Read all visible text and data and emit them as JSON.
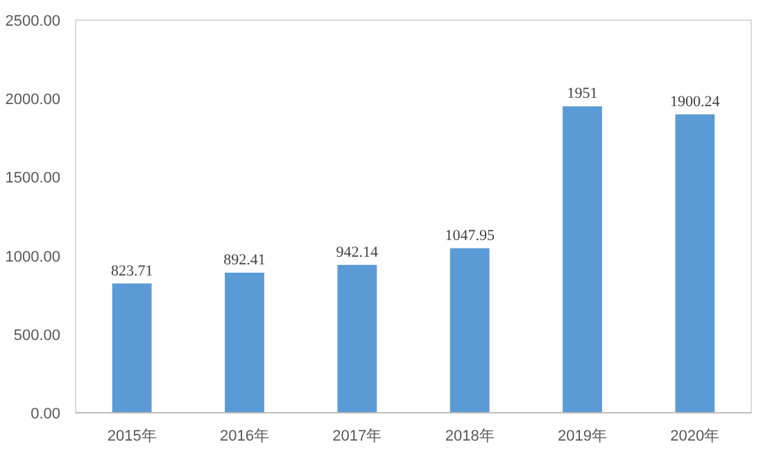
{
  "chart_data": {
    "type": "bar",
    "categories": [
      "2015年",
      "2016年",
      "2017年",
      "2018年",
      "2019年",
      "2020年"
    ],
    "values": [
      823.71,
      892.41,
      942.14,
      1047.95,
      1951,
      1900.24
    ],
    "color": "#5b9bd5",
    "ylim": [
      0,
      2500
    ],
    "yticks": [
      {
        "value": 0,
        "label": "0.00"
      },
      {
        "value": 500,
        "label": "500.00"
      },
      {
        "value": 1000,
        "label": "1000.00"
      },
      {
        "value": 1500,
        "label": "1500.00"
      },
      {
        "value": 2000,
        "label": "2000.00"
      },
      {
        "value": 2500,
        "label": "2500.00"
      }
    ],
    "data_labels": true,
    "grid": false
  }
}
